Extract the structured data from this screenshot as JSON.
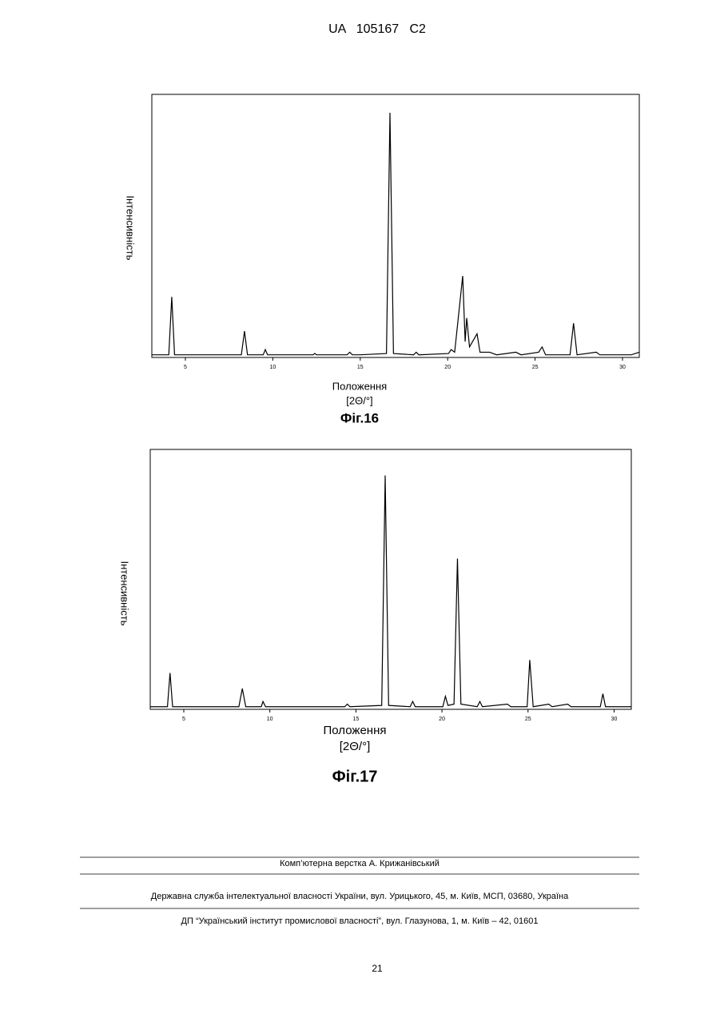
{
  "header": {
    "title": "UA   105167   C2"
  },
  "chart_data": [
    {
      "type": "line",
      "color": "#000000",
      "y_label": "Інтенсивність",
      "x_label": "Положення",
      "x_label_unit": "[2Θ/°]",
      "caption": "Фіг.16",
      "xlim": [
        3.08,
        30.96
      ],
      "xticks": [
        5,
        10,
        15,
        20,
        25,
        30
      ],
      "ylim": [
        0,
        100
      ],
      "x": [
        3.08,
        4.05,
        4.22,
        4.38,
        8.2,
        8.38,
        8.55,
        9.45,
        9.57,
        9.7,
        12.3,
        12.4,
        12.5,
        14.25,
        14.4,
        14.55,
        15.0,
        16.5,
        16.7,
        16.9,
        18.05,
        18.2,
        18.35,
        20.05,
        20.2,
        20.4,
        20.86,
        21.0,
        21.09,
        21.25,
        21.68,
        21.85,
        22.4,
        22.8,
        23.9,
        24.2,
        25.2,
        25.4,
        25.6,
        27.0,
        27.2,
        27.4,
        28.5,
        28.7,
        30.5,
        30.96
      ],
      "values": [
        1,
        1,
        23,
        1,
        1,
        10,
        1,
        1,
        3,
        1,
        1,
        1.5,
        1,
        1,
        2,
        1,
        1,
        1.5,
        93,
        1.5,
        1,
        2,
        1,
        1.5,
        3,
        2,
        31,
        6,
        15,
        4,
        9,
        2,
        2,
        1,
        2,
        1,
        2,
        4,
        1,
        1,
        13,
        1,
        2,
        1,
        1,
        2
      ]
    },
    {
      "type": "line",
      "color": "#000000",
      "y_label": "Інтенсивність",
      "x_label": "Положення",
      "x_label_unit": "[2Θ/°]",
      "caption": "Фіг.17",
      "xlim": [
        3.05,
        31.0
      ],
      "xticks": [
        5,
        10,
        15,
        20,
        25,
        30
      ],
      "ylim": [
        0,
        100
      ],
      "x": [
        3.05,
        4.05,
        4.2,
        4.35,
        8.2,
        8.4,
        8.6,
        9.5,
        9.6,
        9.75,
        14.35,
        14.5,
        14.65,
        16.5,
        16.7,
        16.9,
        18.15,
        18.3,
        18.45,
        20.05,
        20.2,
        20.35,
        20.7,
        20.9,
        21.1,
        22.05,
        22.2,
        22.35,
        23.8,
        24.0,
        24.95,
        25.1,
        25.3,
        26.2,
        26.4,
        27.3,
        27.5,
        29.2,
        29.35,
        29.5,
        31.0
      ],
      "values": [
        1,
        1,
        14,
        1,
        1,
        8,
        1,
        1,
        3,
        1,
        1,
        2,
        1,
        1.5,
        90,
        1.5,
        1,
        3,
        1,
        1,
        5,
        1.5,
        2,
        58,
        2,
        1,
        3,
        1,
        2,
        1,
        1,
        19,
        1,
        2,
        1,
        2,
        1,
        1,
        6,
        1,
        1
      ]
    }
  ],
  "footer": {
    "typesetter": "Комп’ютерна верстка А. Крижанівський",
    "office": "Державна служба інтелектуальної власності України, вул. Урицького, 45, м. Київ, МСП, 03680, Україна",
    "institute": "ДП “Український інститут промислової власності”, вул. Глазунова, 1, м. Київ – 42, 01601",
    "page_number": "21"
  }
}
